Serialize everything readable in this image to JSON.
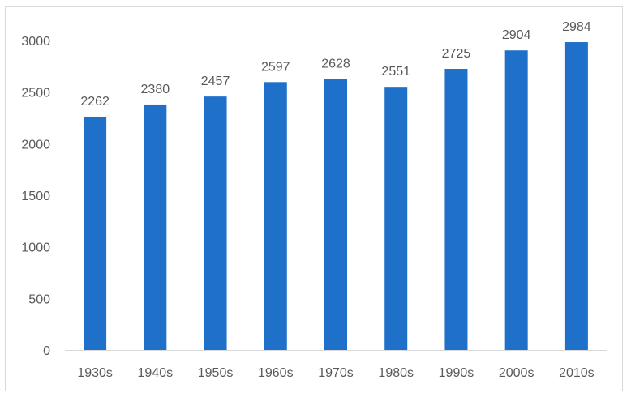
{
  "chart_data": {
    "type": "bar",
    "title": "",
    "xlabel": "",
    "ylabel": "",
    "categories": [
      "1930s",
      "1940s",
      "1950s",
      "1960s",
      "1970s",
      "1980s",
      "1990s",
      "2000s",
      "2010s"
    ],
    "values": [
      2262,
      2380,
      2457,
      2597,
      2628,
      2551,
      2725,
      2904,
      2984
    ],
    "data_labels": [
      "2262",
      "2380",
      "2457",
      "2597",
      "2628",
      "2551",
      "2725",
      "2904",
      "2984"
    ],
    "y_ticks": [
      "0",
      "500",
      "1000",
      "1500",
      "2000",
      "2500",
      "3000"
    ],
    "ylim": [
      0,
      3000
    ],
    "grid": false,
    "legend": "none",
    "bar_color": "#1f70c8"
  }
}
